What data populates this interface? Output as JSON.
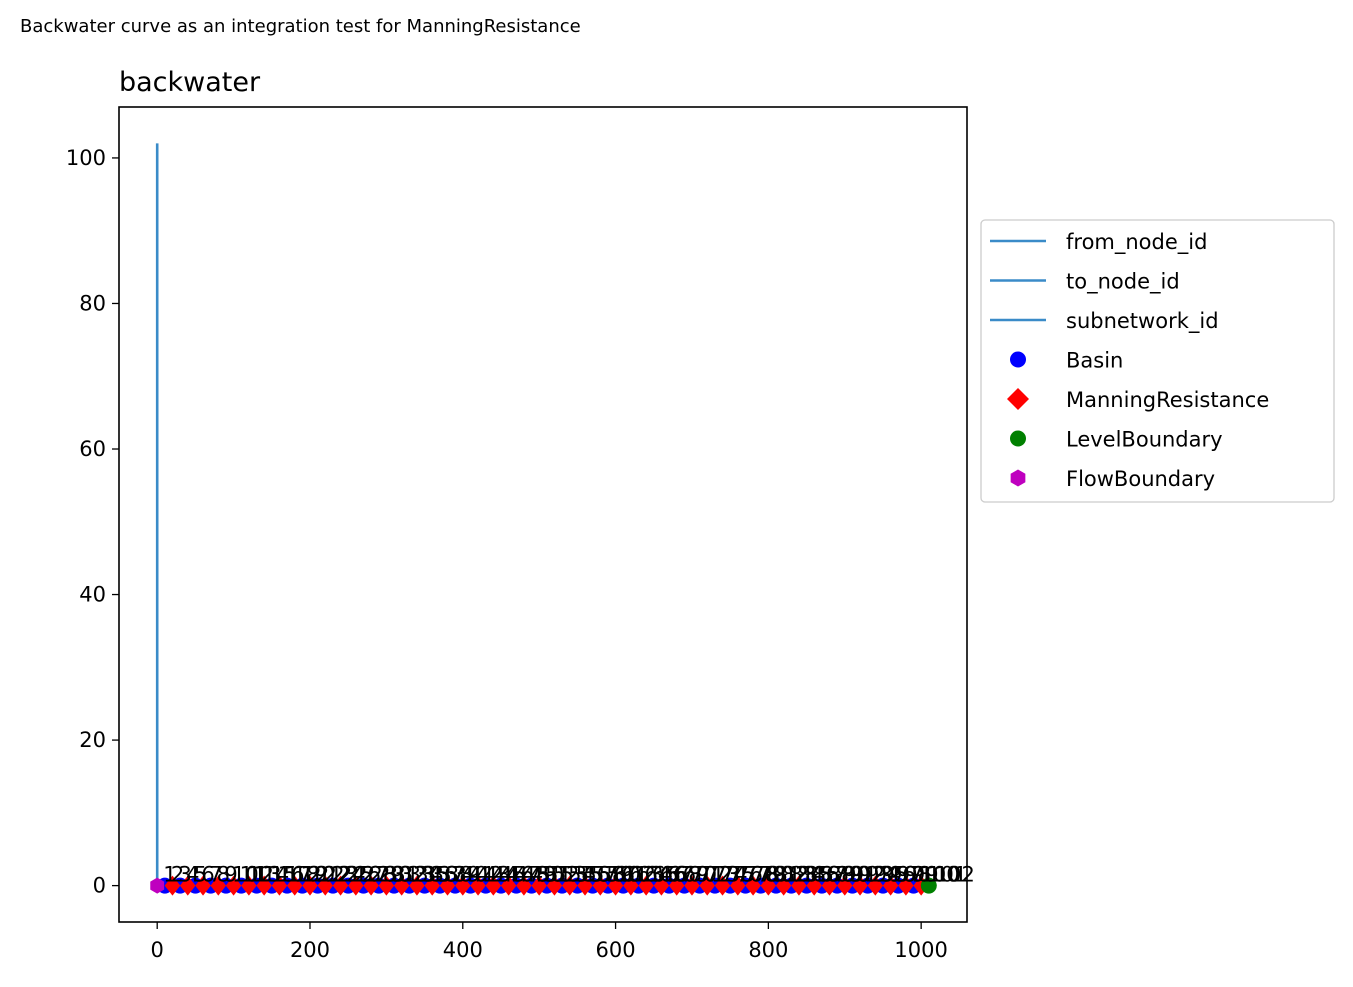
{
  "figure": {
    "suptitle": "Backwater curve as an integration test for ManningResistance"
  },
  "chart_data": {
    "type": "scatter",
    "title": "backwater",
    "xlabel": "",
    "ylabel": "",
    "xlim": [
      -50,
      1060
    ],
    "ylim": [
      -5,
      107
    ],
    "xticks": [
      "0",
      "200",
      "400",
      "600",
      "800",
      "1000"
    ],
    "yticks": [
      "0",
      "20",
      "40",
      "60",
      "80",
      "100"
    ],
    "grid": false,
    "legend": {
      "placement": "outside right"
    },
    "series": [
      {
        "name": "from_node_id",
        "kind": "line",
        "color": "#3a8bc8",
        "points": [
          [
            0,
            102
          ],
          [
            0,
            0
          ]
        ]
      },
      {
        "name": "to_node_id",
        "kind": "line",
        "color": "#3a8bc8",
        "points": []
      },
      {
        "name": "subnetwork_id",
        "kind": "line",
        "color": "#3a8bc8",
        "points": []
      },
      {
        "name": "Basin",
        "kind": "marker",
        "marker": "circle",
        "color": "#0000ff",
        "x": [
          10,
          30,
          50,
          70,
          90,
          110,
          130,
          150,
          170,
          190,
          210,
          230,
          250,
          270,
          290,
          310,
          330,
          350,
          370,
          390,
          410,
          430,
          450,
          470,
          490,
          510,
          530,
          550,
          570,
          590,
          610,
          630,
          650,
          670,
          690,
          710,
          730,
          750,
          770,
          790,
          810,
          830,
          850,
          870,
          890,
          910,
          930,
          950,
          970,
          990
        ],
        "y": 0
      },
      {
        "name": "ManningResistance",
        "kind": "marker",
        "marker": "diamond",
        "color": "#ff0000",
        "x": [
          20,
          40,
          60,
          80,
          100,
          120,
          140,
          160,
          180,
          200,
          220,
          240,
          260,
          280,
          300,
          320,
          340,
          360,
          380,
          400,
          420,
          440,
          460,
          480,
          500,
          520,
          540,
          560,
          580,
          600,
          620,
          640,
          660,
          680,
          700,
          720,
          740,
          760,
          780,
          800,
          820,
          840,
          860,
          880,
          900,
          920,
          940,
          960,
          980,
          1000
        ],
        "y": 0
      },
      {
        "name": "LevelBoundary",
        "kind": "marker",
        "marker": "circle",
        "color": "#008000",
        "x": [
          1010
        ],
        "y": 0
      },
      {
        "name": "FlowBoundary",
        "kind": "marker",
        "marker": "hexagon",
        "color": "#bf00bf",
        "x": [
          0
        ],
        "y": 0
      }
    ],
    "point_labels": [
      "1",
      "2",
      "3",
      "4",
      "5",
      "6",
      "7",
      "8",
      "9",
      "10",
      "11",
      "12",
      "13",
      "14",
      "15",
      "16",
      "17",
      "18",
      "19",
      "20",
      "21",
      "22",
      "23",
      "24",
      "25",
      "26",
      "27",
      "28",
      "29",
      "30",
      "31",
      "32",
      "33",
      "34",
      "35",
      "36",
      "37",
      "38",
      "39",
      "40",
      "41",
      "42",
      "43",
      "44",
      "45",
      "46",
      "47",
      "48",
      "49",
      "50",
      "51",
      "52",
      "53",
      "54",
      "55",
      "56",
      "57",
      "58",
      "59",
      "60",
      "61",
      "62",
      "63",
      "64",
      "65",
      "66",
      "67",
      "68",
      "69",
      "70",
      "71",
      "72",
      "73",
      "74",
      "75",
      "76",
      "77",
      "78",
      "79",
      "80",
      "81",
      "82",
      "83",
      "84",
      "85",
      "86",
      "87",
      "88",
      "89",
      "90",
      "91",
      "92",
      "93",
      "94",
      "95",
      "96",
      "97",
      "98",
      "99",
      "100",
      "101",
      "102"
    ]
  }
}
